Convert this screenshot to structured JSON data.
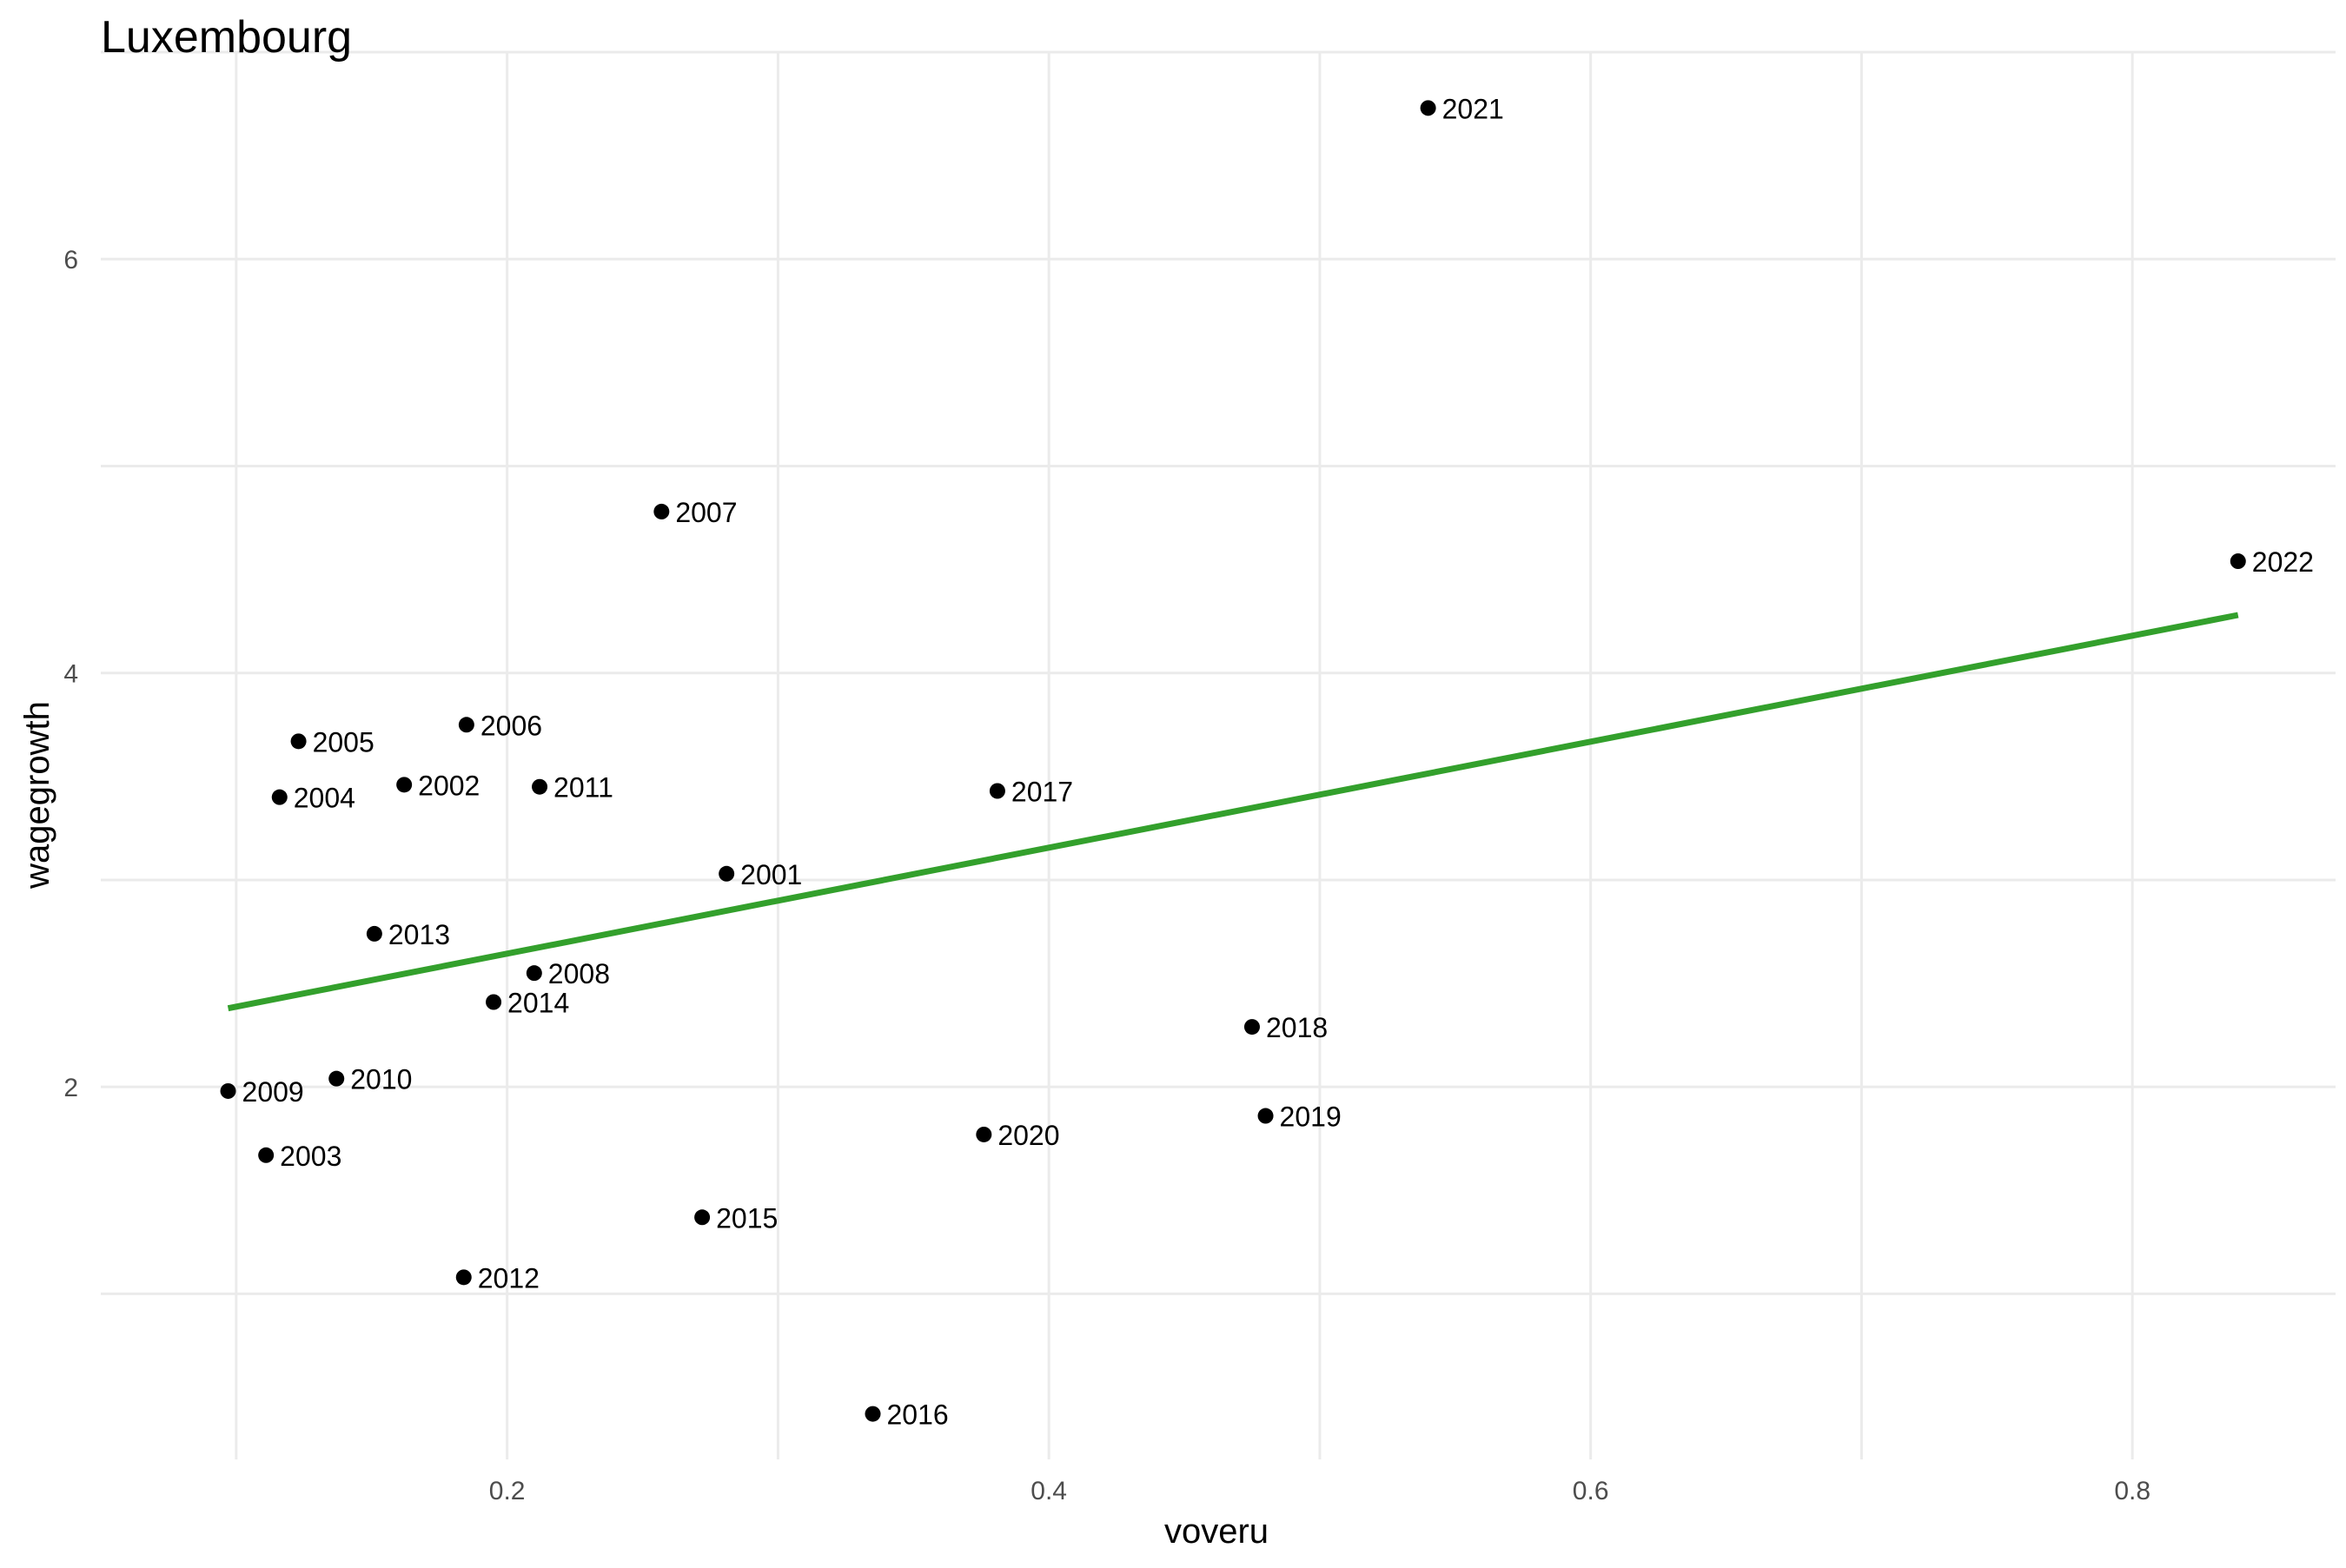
{
  "chart_data": {
    "type": "scatter",
    "title": "Luxembourg",
    "xlabel": "voveru",
    "ylabel": "wagegrowth",
    "xlim": [
      0.05,
      0.875
    ],
    "ylim": [
      0.2,
      7.0
    ],
    "x_ticks": [
      0.2,
      0.4,
      0.6,
      0.8
    ],
    "x_tick_labels": [
      "0.2",
      "0.4",
      "0.6",
      "0.8"
    ],
    "x_minor_ticks": [
      0.1,
      0.3,
      0.5,
      0.7
    ],
    "y_ticks": [
      2,
      4,
      6
    ],
    "y_tick_labels": [
      "2",
      "4",
      "6"
    ],
    "y_minor_ticks": [
      1,
      3,
      5,
      7
    ],
    "grid": true,
    "points": [
      {
        "label": "2001",
        "x": 0.281,
        "y": 3.03
      },
      {
        "label": "2002",
        "x": 0.162,
        "y": 3.46
      },
      {
        "label": "2003",
        "x": 0.111,
        "y": 1.67
      },
      {
        "label": "2004",
        "x": 0.116,
        "y": 3.4
      },
      {
        "label": "2005",
        "x": 0.123,
        "y": 3.67
      },
      {
        "label": "2006",
        "x": 0.185,
        "y": 3.75
      },
      {
        "label": "2007",
        "x": 0.257,
        "y": 4.78
      },
      {
        "label": "2008",
        "x": 0.21,
        "y": 2.55
      },
      {
        "label": "2009",
        "x": 0.097,
        "y": 1.98
      },
      {
        "label": "2010",
        "x": 0.137,
        "y": 2.04
      },
      {
        "label": "2011",
        "x": 0.212,
        "y": 3.45
      },
      {
        "label": "2012",
        "x": 0.184,
        "y": 1.08
      },
      {
        "label": "2013",
        "x": 0.151,
        "y": 2.74
      },
      {
        "label": "2014",
        "x": 0.195,
        "y": 2.41
      },
      {
        "label": "2015",
        "x": 0.272,
        "y": 1.37
      },
      {
        "label": "2016",
        "x": 0.335,
        "y": 0.42
      },
      {
        "label": "2017",
        "x": 0.381,
        "y": 3.43
      },
      {
        "label": "2018",
        "x": 0.475,
        "y": 2.29
      },
      {
        "label": "2019",
        "x": 0.48,
        "y": 1.86
      },
      {
        "label": "2020",
        "x": 0.376,
        "y": 1.77
      },
      {
        "label": "2021",
        "x": 0.54,
        "y": 6.73
      },
      {
        "label": "2022",
        "x": 0.839,
        "y": 4.54
      }
    ],
    "fit_line": {
      "x": [
        0.097,
        0.839
      ],
      "y": [
        2.38,
        4.28
      ],
      "color": "#33a02c"
    },
    "point_color": "#000000"
  }
}
